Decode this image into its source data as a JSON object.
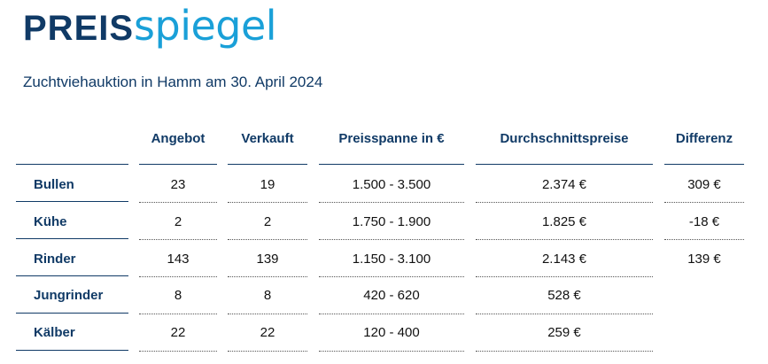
{
  "logo": {
    "bold": "PREIS",
    "light": "spiegel"
  },
  "subtitle": "Zuchtviehauktion in Hamm am 30. April 2024",
  "table": {
    "headers": [
      "Angebot",
      "Verkauft",
      "Preisspanne in €",
      "Durchschnittspreise",
      "Differenz"
    ],
    "rows": [
      {
        "label": "Bullen",
        "angebot": "23",
        "verkauft": "19",
        "preisspanne": "1.500 - 3.500",
        "durchschnitt": "2.374 €",
        "differenz": "309 €"
      },
      {
        "label": "Kühe",
        "angebot": "2",
        "verkauft": "2",
        "preisspanne": "1.750 - 1.900",
        "durchschnitt": "1.825 €",
        "differenz": "-18 €"
      },
      {
        "label": "Rinder",
        "angebot": "143",
        "verkauft": "139",
        "preisspanne": "1.150 - 3.100",
        "durchschnitt": "2.143 €",
        "differenz": "139 €"
      },
      {
        "label": "Jungrinder",
        "angebot": "8",
        "verkauft": "8",
        "preisspanne": "420 - 620",
        "durchschnitt": "528 €",
        "differenz": ""
      },
      {
        "label": "Kälber",
        "angebot": "22",
        "verkauft": "22",
        "preisspanne": "120 - 400",
        "durchschnitt": "259 €",
        "differenz": ""
      }
    ]
  },
  "colors": {
    "brand_dark": "#103a66",
    "brand_light": "#1aa0d8"
  }
}
